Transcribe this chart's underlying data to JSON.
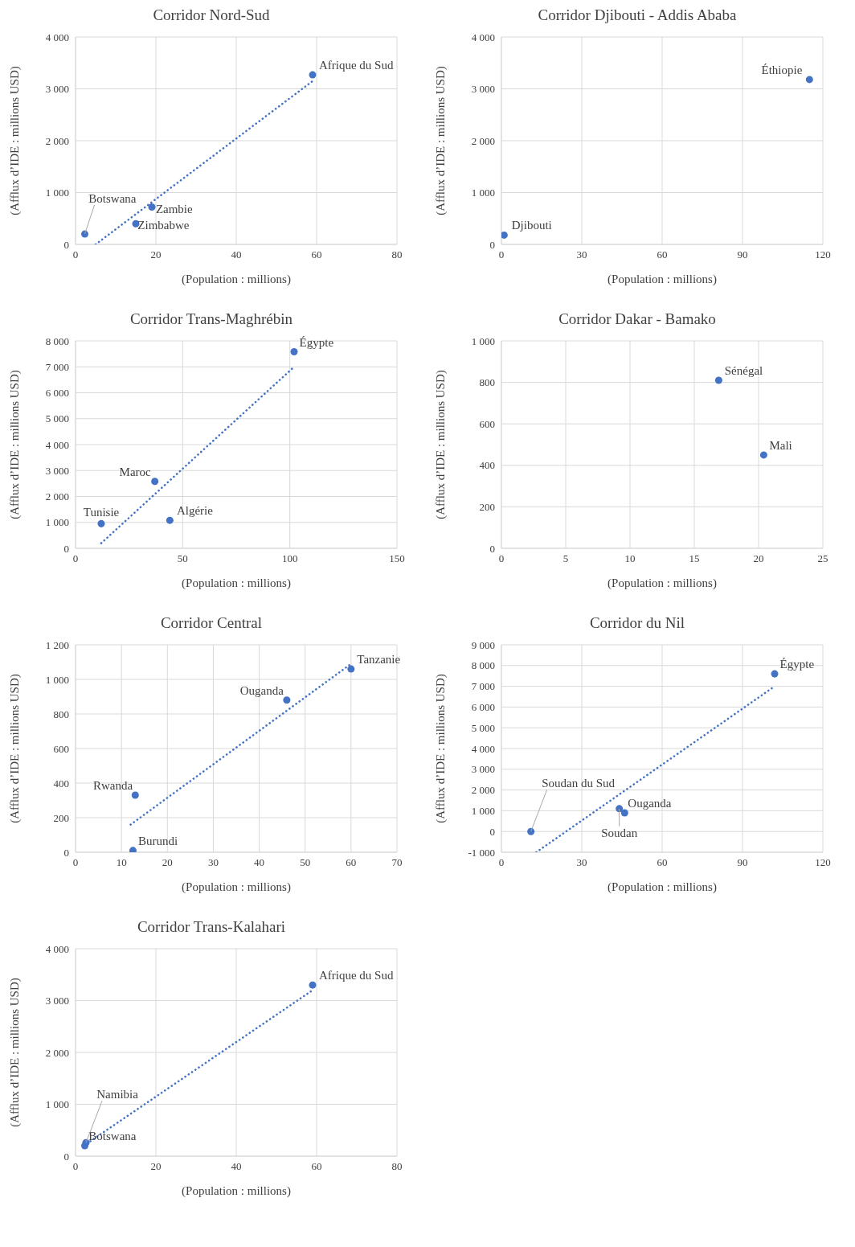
{
  "chart_data": [
    {
      "type": "scatter",
      "title": "Corridor Nord-Sud",
      "xlabel": "(Population : millions)",
      "ylabel": "(Afflux d’IDE : millions USD)",
      "xlim": [
        0,
        80
      ],
      "xticks": [
        0,
        20,
        40,
        60,
        80
      ],
      "ylim": [
        0,
        4000
      ],
      "yticks": [
        0,
        {
          "value": 1000,
          "label": "1 000"
        },
        {
          "value": 2000,
          "label": "2 000"
        },
        {
          "value": 3000,
          "label": "3 000"
        },
        {
          "value": 4000,
          "label": "4 000"
        }
      ],
      "grid": true,
      "marker": "circle",
      "series": [
        {
          "type": "scatter",
          "color": "#4472c4",
          "x": [
            59,
            19,
            15,
            2.3
          ],
          "values": [
            3270,
            720,
            400,
            200
          ]
        },
        {
          "type": "line",
          "color": "#4472c4",
          "line_style": "dotted",
          "marker": "none",
          "x": [
            5,
            59
          ],
          "values": [
            0,
            3150
          ]
        }
      ],
      "annotations": [
        {
          "text": "Afrique du Sud",
          "x": 59,
          "y": 3270
        },
        {
          "text": "Zambie",
          "x": 19,
          "y": 720
        },
        {
          "text": "Zimbabwe",
          "x": 15,
          "y": 400
        },
        {
          "text": "Botswana",
          "x": 2.3,
          "y": 200
        }
      ]
    },
    {
      "type": "scatter",
      "title": "Corridor Djibouti - Addis Ababa",
      "xlabel": "(Population : millions)",
      "ylabel": "(Afflux d’IDE : millions USD)",
      "xlim": [
        0,
        120
      ],
      "xticks": [
        0,
        30,
        60,
        90,
        120
      ],
      "ylim": [
        0,
        4000
      ],
      "yticks": [
        0,
        {
          "value": 1000,
          "label": "1 000"
        },
        {
          "value": 2000,
          "label": "2 000"
        },
        {
          "value": 3000,
          "label": "3 000"
        },
        {
          "value": 4000,
          "label": "4 000"
        }
      ],
      "grid": true,
      "marker": "circle",
      "series": [
        {
          "type": "scatter",
          "color": "#4472c4",
          "x": [
            115,
            1
          ],
          "values": [
            3180,
            180
          ]
        }
      ],
      "annotations": [
        {
          "text": "Éthiopie",
          "x": 115,
          "y": 3180
        },
        {
          "text": "Djibouti",
          "x": 1,
          "y": 180
        }
      ]
    },
    {
      "type": "scatter",
      "title": "Corridor Trans-Maghrébin",
      "xlabel": "(Population : millions)",
      "ylabel": "(Afflux d’IDE : millions USD)",
      "xlim": [
        0,
        150
      ],
      "xticks": [
        0,
        50,
        100,
        150
      ],
      "ylim": [
        0,
        8000
      ],
      "yticks": [
        0,
        {
          "value": 1000,
          "label": "1 000"
        },
        {
          "value": 2000,
          "label": "2 000"
        },
        {
          "value": 3000,
          "label": "3 000"
        },
        {
          "value": 4000,
          "label": "4 000"
        },
        {
          "value": 5000,
          "label": "5 000"
        },
        {
          "value": 6000,
          "label": "6 000"
        },
        {
          "value": 7000,
          "label": "7 000"
        },
        {
          "value": 8000,
          "label": "8 000"
        }
      ],
      "grid": true,
      "marker": "circle",
      "series": [
        {
          "type": "scatter",
          "color": "#4472c4",
          "x": [
            102,
            37,
            12,
            44
          ],
          "values": [
            7580,
            2580,
            950,
            1080
          ]
        },
        {
          "type": "line",
          "color": "#4472c4",
          "line_style": "dotted",
          "marker": "none",
          "x": [
            12,
            102
          ],
          "values": [
            200,
            7000
          ]
        }
      ],
      "annotations": [
        {
          "text": "Égypte",
          "x": 102,
          "y": 7580
        },
        {
          "text": "Maroc",
          "x": 37,
          "y": 2580
        },
        {
          "text": "Tunisie",
          "x": 12,
          "y": 950
        },
        {
          "text": "Algérie",
          "x": 44,
          "y": 1080
        }
      ]
    },
    {
      "type": "scatter",
      "title": "Corridor Dakar - Bamako",
      "xlabel": "(Population : millions)",
      "ylabel": "(Afflux d’IDE : millions USD)",
      "xlim": [
        0,
        25
      ],
      "xticks": [
        0,
        5,
        10,
        15,
        20,
        25
      ],
      "ylim": [
        0,
        1000
      ],
      "yticks": [
        0,
        200,
        400,
        600,
        800,
        {
          "value": 1000,
          "label": "1 000"
        }
      ],
      "grid": true,
      "marker": "circle",
      "series": [
        {
          "type": "scatter",
          "color": "#4472c4",
          "x": [
            16.9,
            20.4
          ],
          "values": [
            810,
            450
          ]
        }
      ],
      "annotations": [
        {
          "text": "Sénégal",
          "x": 16.9,
          "y": 810
        },
        {
          "text": "Mali",
          "x": 20.4,
          "y": 450
        }
      ]
    },
    {
      "type": "scatter",
      "title": "Corridor Central",
      "xlabel": "(Population : millions)",
      "ylabel": "(Afflux d’IDE : millions USD)",
      "xlim": [
        0,
        70
      ],
      "xticks": [
        0,
        10,
        20,
        30,
        40,
        50,
        60,
        70
      ],
      "ylim": [
        0,
        1200
      ],
      "yticks": [
        0,
        200,
        400,
        600,
        800,
        {
          "value": 1000,
          "label": "1 000"
        },
        {
          "value": 1200,
          "label": "1 200"
        }
      ],
      "grid": true,
      "marker": "circle",
      "series": [
        {
          "type": "scatter",
          "color": "#4472c4",
          "x": [
            60,
            46,
            13,
            12.5
          ],
          "values": [
            1060,
            880,
            330,
            10
          ]
        },
        {
          "type": "line",
          "color": "#4472c4",
          "line_style": "dotted",
          "marker": "none",
          "x": [
            12,
            60
          ],
          "values": [
            160,
            1090
          ]
        }
      ],
      "annotations": [
        {
          "text": "Tanzanie",
          "x": 60,
          "y": 1060
        },
        {
          "text": "Ouganda",
          "x": 46,
          "y": 880
        },
        {
          "text": "Rwanda",
          "x": 13,
          "y": 330
        },
        {
          "text": "Burundi",
          "x": 12.5,
          "y": 10
        }
      ]
    },
    {
      "type": "scatter",
      "title": "Corridor du Nil",
      "xlabel": "(Population : millions)",
      "ylabel": "(Afflux d’IDE : millions USD)",
      "xlim": [
        0,
        120
      ],
      "xticks": [
        0,
        30,
        60,
        90,
        120
      ],
      "ylim": [
        -1000,
        9000
      ],
      "yticks": [
        {
          "value": -1000,
          "label": "-1 000"
        },
        0,
        {
          "value": 1000,
          "label": "1 000"
        },
        {
          "value": 2000,
          "label": "2 000"
        },
        {
          "value": 3000,
          "label": "3 000"
        },
        {
          "value": 4000,
          "label": "4 000"
        },
        {
          "value": 5000,
          "label": "5 000"
        },
        {
          "value": 6000,
          "label": "6 000"
        },
        {
          "value": 7000,
          "label": "7 000"
        },
        {
          "value": 8000,
          "label": "8 000"
        },
        {
          "value": 9000,
          "label": "9 000"
        }
      ],
      "grid": true,
      "marker": "circle",
      "series": [
        {
          "type": "scatter",
          "color": "#4472c4",
          "x": [
            102,
            44,
            46,
            11
          ],
          "values": [
            7600,
            1100,
            900,
            0
          ]
        },
        {
          "type": "line",
          "color": "#4472c4",
          "line_style": "dotted",
          "marker": "none",
          "x": [
            13,
            102
          ],
          "values": [
            -1000,
            7000
          ]
        }
      ],
      "annotations": [
        {
          "text": "Égypte",
          "x": 102,
          "y": 7600
        },
        {
          "text": "Soudan",
          "x": 44,
          "y": 1100
        },
        {
          "text": "Ouganda",
          "x": 46,
          "y": 900
        },
        {
          "text": "Soudan du Sud",
          "x": 11,
          "y": 0
        }
      ]
    },
    {
      "type": "scatter",
      "title": "Corridor Trans-Kalahari",
      "xlabel": "(Population : millions)",
      "ylabel": "(Afflux d’IDE : millions USD)",
      "xlim": [
        0,
        80
      ],
      "xticks": [
        0,
        20,
        40,
        60,
        80
      ],
      "ylim": [
        0,
        4000
      ],
      "yticks": [
        0,
        {
          "value": 1000,
          "label": "1 000"
        },
        {
          "value": 2000,
          "label": "2 000"
        },
        {
          "value": 3000,
          "label": "3 000"
        },
        {
          "value": 4000,
          "label": "4 000"
        }
      ],
      "grid": true,
      "marker": "circle",
      "series": [
        {
          "type": "scatter",
          "color": "#4472c4",
          "x": [
            59,
            2.3,
            2.6
          ],
          "values": [
            3300,
            200,
            260
          ]
        },
        {
          "type": "line",
          "color": "#4472c4",
          "line_style": "dotted",
          "marker": "none",
          "x": [
            2,
            59
          ],
          "values": [
            200,
            3200
          ]
        }
      ],
      "annotations": [
        {
          "text": "Afrique du Sud",
          "x": 59,
          "y": 3300
        },
        {
          "text": "Botswana",
          "x": 2.3,
          "y": 200
        },
        {
          "text": "Namibia",
          "x": 2.6,
          "y": 260
        }
      ]
    }
  ]
}
